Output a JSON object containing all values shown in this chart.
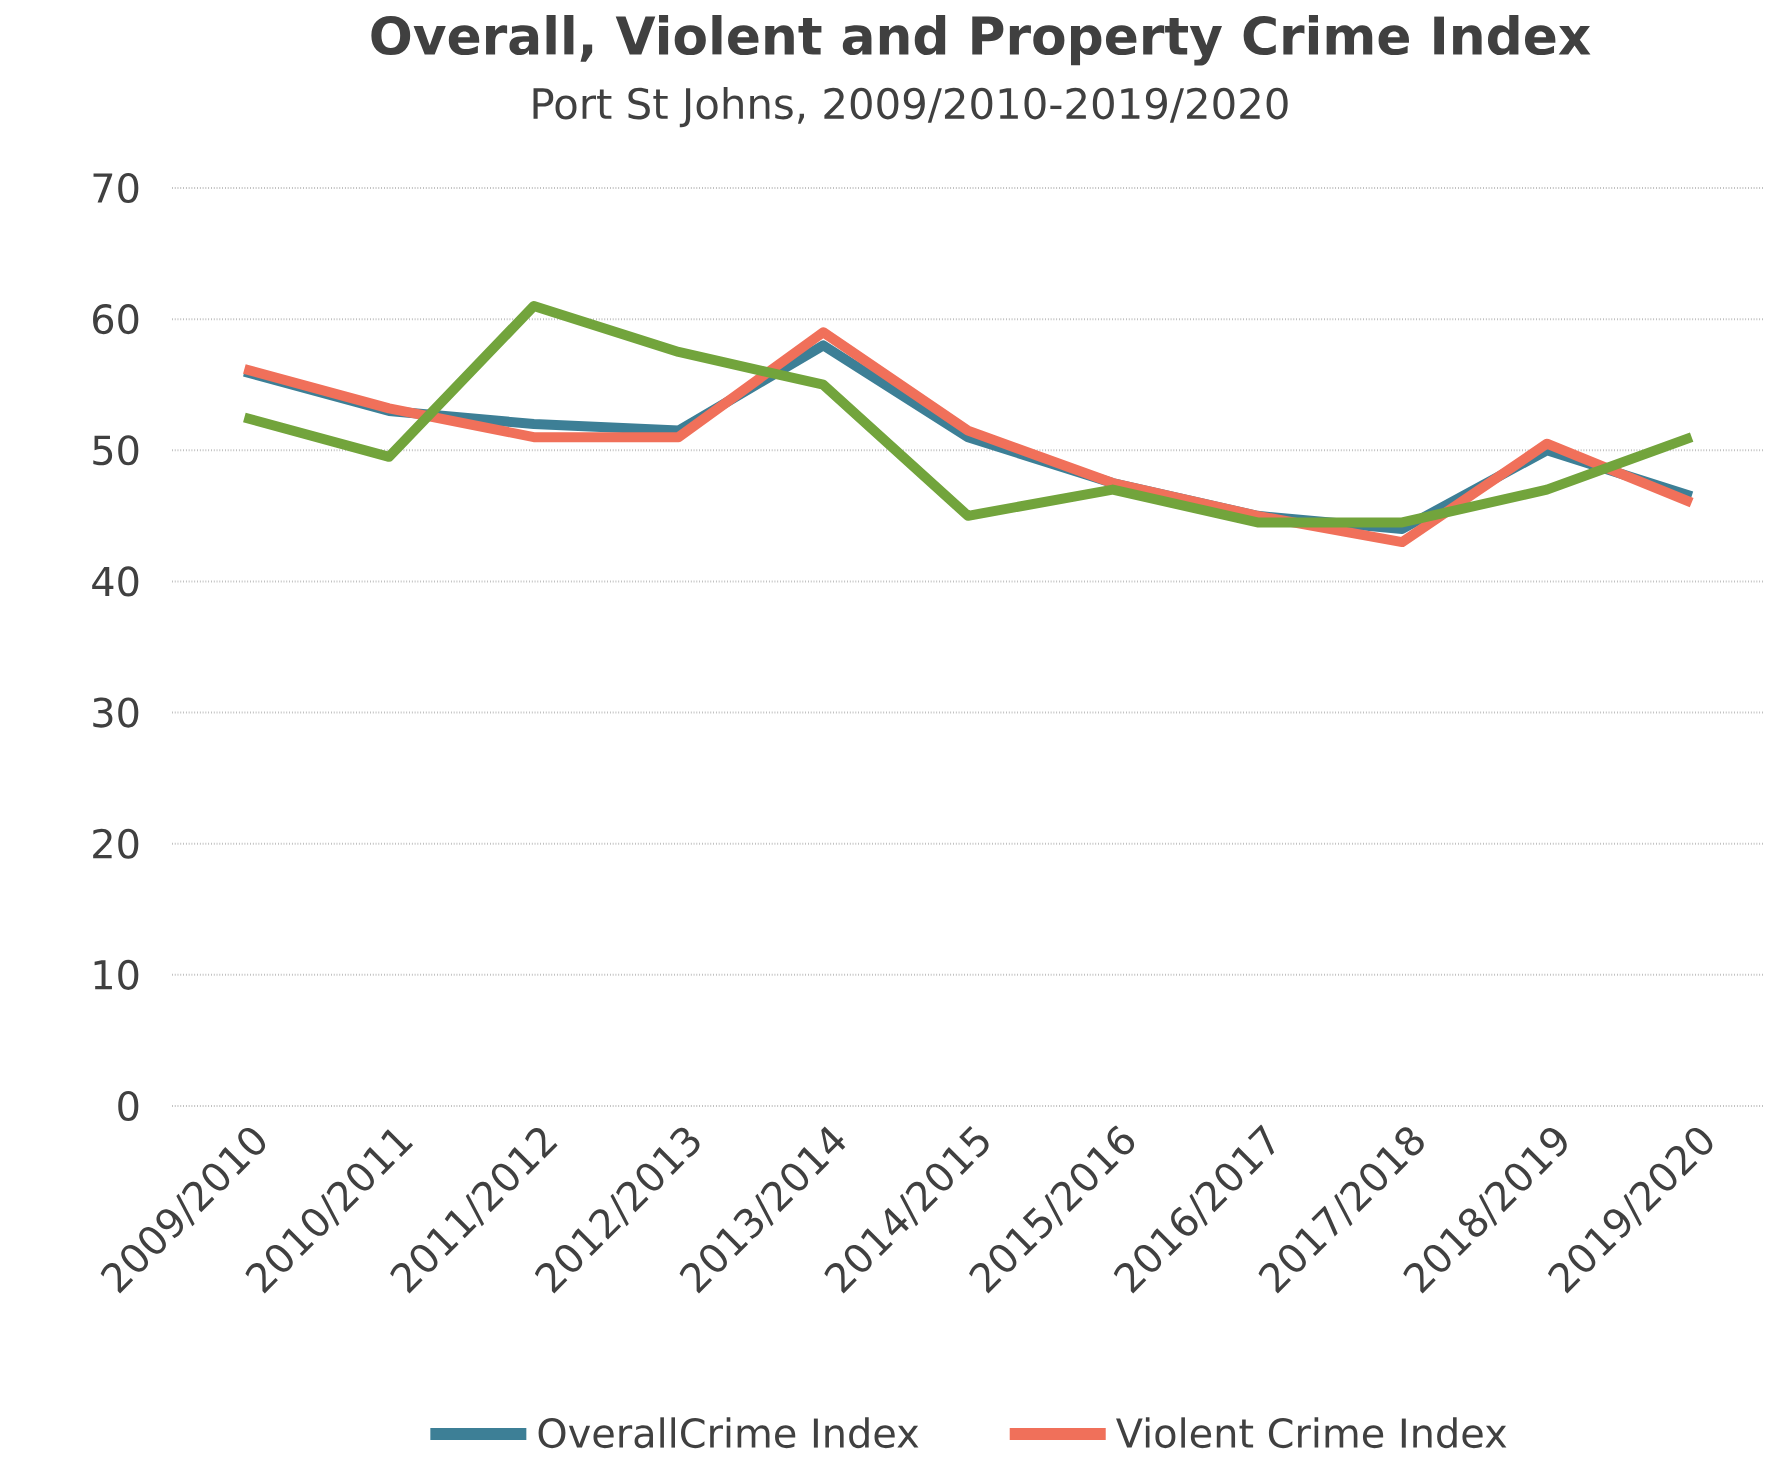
{
  "chart_data": {
    "type": "line",
    "title": "Overall, Violent and Property Crime Index",
    "subtitle": "Port St Johns, 2009/2010-2019/2020",
    "categories": [
      "2009/2010",
      "2010/2011",
      "2011/2012",
      "2012/2013",
      "2013/2014",
      "2014/2015",
      "2015/2016",
      "2016/2017",
      "2017/2018",
      "2018/2019",
      "2019/2020"
    ],
    "series": [
      {
        "name": "OverallCrime Index",
        "color": "#3d7f96",
        "values": [
          56,
          53,
          52,
          51.5,
          58,
          51,
          47.5,
          45,
          44,
          50,
          46.5
        ]
      },
      {
        "name": "Violent Crime Index",
        "color": "#f0705a",
        "values": [
          56.2,
          53.2,
          51,
          51,
          59,
          51.5,
          47.5,
          45,
          43,
          50.5,
          46
        ]
      },
      {
        "color": "#72a43c",
        "values": [
          52.5,
          49.5,
          61,
          57.5,
          55,
          45,
          47,
          44.5,
          44.5,
          47,
          51
        ]
      }
    ],
    "ylim": [
      0,
      70
    ],
    "yticks": [
      0,
      10,
      20,
      30,
      40,
      50,
      60,
      70
    ],
    "grid": "y",
    "legend": "bottom",
    "marker": "none",
    "line_style": "solid"
  }
}
